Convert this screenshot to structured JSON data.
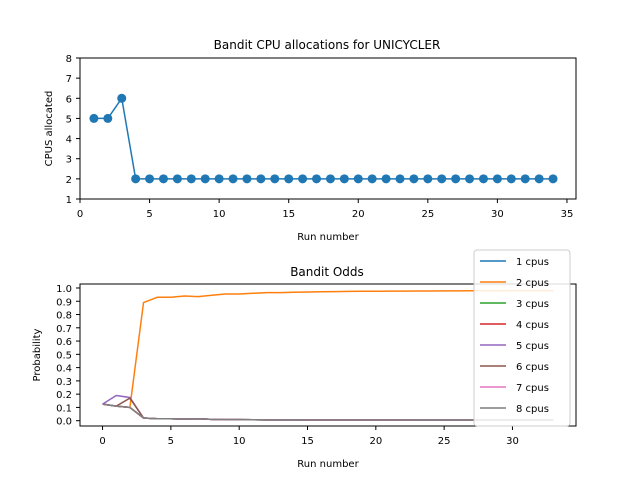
{
  "chart_data": [
    {
      "type": "line",
      "title": "Bandit CPU allocations for UNICYCLER",
      "xlabel": "Run number",
      "ylabel": "CPUS allocated",
      "xlim": [
        0,
        35.65
      ],
      "ylim": [
        1,
        8
      ],
      "xticks": [
        0,
        5,
        10,
        15,
        20,
        25,
        30,
        35
      ],
      "yticks": [
        1,
        2,
        3,
        4,
        5,
        6,
        7,
        8
      ],
      "grid": false,
      "series": [
        {
          "marker": "circle",
          "color": "#1f77b4",
          "x": [
            1,
            2,
            3,
            4,
            5,
            6,
            7,
            8,
            9,
            10,
            11,
            12,
            13,
            14,
            15,
            16,
            17,
            18,
            19,
            20,
            21,
            22,
            23,
            24,
            25,
            26,
            27,
            28,
            29,
            30,
            31,
            32,
            33,
            34
          ],
          "values": [
            5,
            5,
            6,
            2,
            2,
            2,
            2,
            2,
            2,
            2,
            2,
            2,
            2,
            2,
            2,
            2,
            2,
            2,
            2,
            2,
            2,
            2,
            2,
            2,
            2,
            2,
            2,
            2,
            2,
            2,
            2,
            2,
            2,
            2
          ]
        }
      ]
    },
    {
      "type": "line",
      "title": "Bandit Odds",
      "xlabel": "Run number",
      "ylabel": "Probability",
      "xlim": [
        -1.65,
        34.65
      ],
      "ylim": [
        -0.04,
        1.03
      ],
      "xticks": [
        0,
        5,
        10,
        15,
        20,
        25,
        30
      ],
      "yticks": [
        0.0,
        0.1,
        0.2,
        0.3,
        0.4,
        0.5,
        0.6,
        0.7,
        0.8,
        0.9,
        1.0
      ],
      "ytick_labels": [
        "0.0",
        "0.1",
        "0.2",
        "0.3",
        "0.4",
        "0.5",
        "0.6",
        "0.7",
        "0.8",
        "0.9",
        "1.0"
      ],
      "grid": false,
      "legend": "upper right",
      "x": [
        0,
        1,
        2,
        3,
        4,
        5,
        6,
        7,
        8,
        9,
        10,
        11,
        12,
        13,
        14,
        15,
        16,
        17,
        18,
        19,
        20,
        21,
        22,
        23,
        24,
        25,
        26,
        27,
        28,
        29,
        30,
        31,
        32,
        33
      ],
      "series": [
        {
          "name": "1 cpus",
          "color": "#1f77b4",
          "values": [
            0.125,
            0.11,
            0.1,
            0.02,
            0.015,
            0.015,
            0.012,
            0.015,
            0.01,
            0.008,
            0.008,
            0.007,
            0.006,
            0.006,
            0.006,
            0.005,
            0.005,
            0.005,
            0.005,
            0.005,
            0.005,
            0.005,
            0.005,
            0.004,
            0.004,
            0.004,
            0.004,
            0.004,
            0.004,
            0.004,
            0.004,
            0.004,
            0.004,
            0.004
          ]
        },
        {
          "name": "2 cpus",
          "color": "#ff7f0e",
          "values": [
            0.125,
            0.11,
            0.1,
            0.89,
            0.93,
            0.93,
            0.94,
            0.935,
            0.945,
            0.955,
            0.955,
            0.96,
            0.965,
            0.965,
            0.968,
            0.97,
            0.972,
            0.973,
            0.974,
            0.975,
            0.975,
            0.976,
            0.976,
            0.977,
            0.977,
            0.978,
            0.978,
            0.979,
            0.979,
            0.979,
            0.98,
            0.98,
            0.98,
            0.98
          ]
        },
        {
          "name": "3 cpus",
          "color": "#2ca02c",
          "values": [
            0.125,
            0.11,
            0.1,
            0.02,
            0.015,
            0.015,
            0.012,
            0.015,
            0.01,
            0.008,
            0.008,
            0.007,
            0.006,
            0.006,
            0.006,
            0.005,
            0.005,
            0.005,
            0.005,
            0.005,
            0.005,
            0.005,
            0.005,
            0.004,
            0.004,
            0.004,
            0.004,
            0.004,
            0.004,
            0.004,
            0.004,
            0.004,
            0.004,
            0.004
          ]
        },
        {
          "name": "4 cpus",
          "color": "#d62728",
          "values": [
            0.125,
            0.11,
            0.1,
            0.02,
            0.015,
            0.015,
            0.012,
            0.015,
            0.01,
            0.008,
            0.008,
            0.007,
            0.006,
            0.006,
            0.006,
            0.005,
            0.005,
            0.005,
            0.005,
            0.005,
            0.005,
            0.005,
            0.005,
            0.004,
            0.004,
            0.004,
            0.004,
            0.004,
            0.004,
            0.004,
            0.004,
            0.004,
            0.004,
            0.004
          ]
        },
        {
          "name": "5 cpus",
          "color": "#9467bd",
          "values": [
            0.125,
            0.19,
            0.175,
            0.02,
            0.015,
            0.015,
            0.012,
            0.015,
            0.01,
            0.008,
            0.008,
            0.007,
            0.006,
            0.006,
            0.006,
            0.005,
            0.005,
            0.005,
            0.005,
            0.005,
            0.005,
            0.005,
            0.005,
            0.004,
            0.004,
            0.004,
            0.004,
            0.004,
            0.004,
            0.004,
            0.004,
            0.004,
            0.004,
            0.004
          ]
        },
        {
          "name": "6 cpus",
          "color": "#8c564b",
          "values": [
            0.125,
            0.11,
            0.17,
            0.02,
            0.015,
            0.015,
            0.012,
            0.015,
            0.01,
            0.008,
            0.008,
            0.007,
            0.006,
            0.006,
            0.006,
            0.005,
            0.005,
            0.005,
            0.005,
            0.005,
            0.005,
            0.005,
            0.005,
            0.004,
            0.004,
            0.004,
            0.004,
            0.004,
            0.004,
            0.004,
            0.004,
            0.004,
            0.004,
            0.004
          ]
        },
        {
          "name": "7 cpus",
          "color": "#e377c2",
          "values": [
            0.125,
            0.11,
            0.1,
            0.02,
            0.015,
            0.015,
            0.012,
            0.015,
            0.01,
            0.008,
            0.008,
            0.007,
            0.006,
            0.006,
            0.006,
            0.005,
            0.005,
            0.005,
            0.005,
            0.005,
            0.005,
            0.005,
            0.005,
            0.004,
            0.004,
            0.004,
            0.004,
            0.004,
            0.004,
            0.004,
            0.004,
            0.004,
            0.004,
            0.004
          ]
        },
        {
          "name": "8 cpus",
          "color": "#7f7f7f",
          "values": [
            0.125,
            0.11,
            0.1,
            0.02,
            0.015,
            0.015,
            0.012,
            0.015,
            0.01,
            0.008,
            0.008,
            0.007,
            0.006,
            0.006,
            0.006,
            0.005,
            0.005,
            0.005,
            0.005,
            0.005,
            0.005,
            0.005,
            0.005,
            0.004,
            0.004,
            0.004,
            0.004,
            0.004,
            0.004,
            0.004,
            0.004,
            0.004,
            0.004,
            0.004
          ]
        }
      ]
    }
  ]
}
